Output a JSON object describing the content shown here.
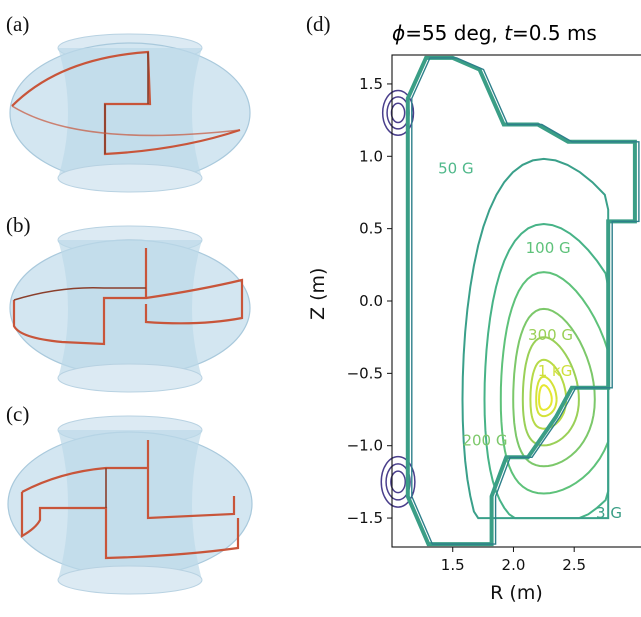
{
  "panels": {
    "a": {
      "label": "(a)"
    },
    "b": {
      "label": "(b)"
    },
    "c": {
      "label": "(c)"
    },
    "d": {
      "label": "(d)"
    }
  },
  "colors": {
    "torus_fill": "#cfe4f0",
    "torus_stroke": "#a9c9dc",
    "coil": "#c8553a",
    "wall": "#3a9e86",
    "low_contour": "#3b4f8c",
    "high_contour": "#e6e830"
  },
  "chart_data": {
    "type": "contour",
    "title_parts": {
      "phi_sym": "ϕ",
      "phi_rest": "=55 deg, ",
      "t_sym": "t",
      "t_rest": "=0.5 ms"
    },
    "xlabel": "R (m)",
    "ylabel": "Z (m)",
    "xlim": [
      1.0,
      3.05
    ],
    "ylim": [
      -1.7,
      1.7
    ],
    "xticks": [
      1.5,
      2.0,
      2.5
    ],
    "xtick_labels": [
      "1.5",
      "2.0",
      "2.5"
    ],
    "yticks": [
      1.5,
      1.0,
      0.5,
      0.0,
      -0.5,
      -1.0,
      -1.5
    ],
    "ytick_labels": [
      "1.5",
      "1.0",
      "0.5",
      "0.0",
      "−0.5",
      "−1.0",
      "−1.5"
    ],
    "contour_labels": [
      {
        "text": "50 G",
        "R": 1.38,
        "Z": 0.88,
        "color": "#4fb88a"
      },
      {
        "text": "100 G",
        "R": 2.1,
        "Z": 0.33,
        "color": "#5ec27a"
      },
      {
        "text": "300 G",
        "R": 2.12,
        "Z": -0.27,
        "color": "#9ad057"
      },
      {
        "text": "1 kG",
        "R": 2.2,
        "Z": -0.52,
        "color": "#cfe03d"
      },
      {
        "text": "200 G",
        "R": 1.58,
        "Z": -1.0,
        "color": "#7cc86a"
      },
      {
        "text": "3 G",
        "R": 2.68,
        "Z": -1.5,
        "color": "#3a9e86"
      }
    ]
  }
}
